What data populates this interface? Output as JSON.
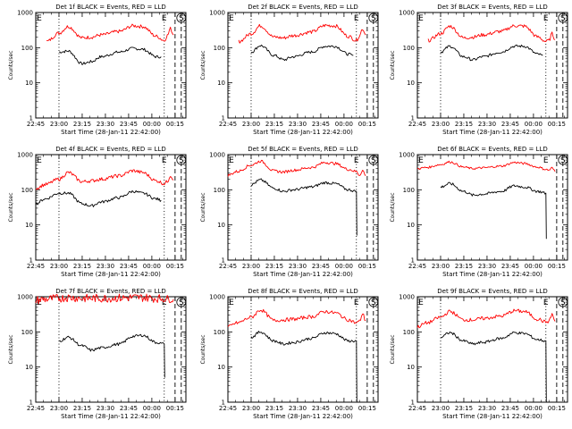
{
  "figure": {
    "panel_count": 9,
    "y_scale": "log",
    "colors": {
      "events": "#000000",
      "lld": "#ff0000",
      "axis": "#000000",
      "background": "#ffffff"
    }
  },
  "chart_data": [
    {
      "type": "line",
      "detector": "1f",
      "title": "Det 1f BLACK = Events, RED = LLD",
      "xlabel": "Start Time (28-Jan-11 22:42:00)",
      "ylabel": "Counts/sec",
      "xticks": [
        "22:45",
        "23:00",
        "23:15",
        "23:30",
        "23:45",
        "00:00",
        "00:15"
      ],
      "xlim_min": [
        3,
        100
      ],
      "ylim": [
        1,
        1000
      ],
      "ytick_labels": [
        "1",
        "10",
        "100",
        "1000"
      ],
      "marker_lines": {
        "dotted_min": [
          18,
          86
        ],
        "dashed_min": [
          93,
          97
        ]
      },
      "markers": [
        {
          "label": "E",
          "min": 3
        },
        {
          "label": "E",
          "min": 86
        },
        {
          "label": "S",
          "min": 97
        }
      ],
      "series": [
        {
          "name": "Events",
          "color": "#000000",
          "x": [
            18,
            24,
            33,
            39,
            45,
            57,
            66,
            72,
            81,
            84
          ],
          "y": [
            75,
            80,
            35,
            40,
            55,
            75,
            95,
            90,
            55,
            55
          ],
          "end_drop": null
        },
        {
          "name": "LLD",
          "color": "#ff0000",
          "x": [
            10,
            18,
            24,
            33,
            39,
            45,
            57,
            66,
            72,
            81,
            86,
            88,
            90,
            92
          ],
          "y": [
            150,
            260,
            400,
            190,
            200,
            230,
            290,
            420,
            400,
            210,
            160,
            220,
            350,
            230
          ],
          "noise": 0.05,
          "end_drop": null
        }
      ]
    },
    {
      "type": "line",
      "detector": "2f",
      "title": "Det 2f BLACK = Events, RED = LLD",
      "xlabel": "Start Time (28-Jan-11 22:42:00)",
      "ylabel": "Counts/sec",
      "xticks": [
        "22:45",
        "23:00",
        "23:15",
        "23:30",
        "23:45",
        "00:00",
        "00:15"
      ],
      "xlim_min": [
        3,
        100
      ],
      "ylim": [
        1,
        1000
      ],
      "ytick_labels": [
        "1",
        "10",
        "100",
        "1000"
      ],
      "marker_lines": {
        "dotted_min": [
          18,
          86
        ],
        "dashed_min": [
          93,
          97
        ]
      },
      "markers": [
        {
          "label": "E",
          "min": 3
        },
        {
          "label": "E",
          "min": 86
        },
        {
          "label": "S",
          "min": 97
        }
      ],
      "series": [
        {
          "name": "Events",
          "color": "#000000",
          "x": [
            18,
            24,
            33,
            39,
            45,
            57,
            66,
            72,
            81,
            84
          ],
          "y": [
            75,
            115,
            60,
            45,
            55,
            75,
            110,
            110,
            65,
            60
          ],
          "end_drop": null
        },
        {
          "name": "LLD",
          "color": "#ff0000",
          "x": [
            10,
            18,
            24,
            33,
            39,
            45,
            57,
            66,
            72,
            81,
            86,
            88,
            90,
            92
          ],
          "y": [
            150,
            250,
            420,
            200,
            190,
            220,
            280,
            430,
            420,
            210,
            160,
            220,
            350,
            230
          ],
          "noise": 0.05,
          "end_drop": null
        }
      ]
    },
    {
      "type": "line",
      "detector": "3f",
      "title": "Det 3f BLACK = Events, RED = LLD",
      "xlabel": "Start Time (28-Jan-11 22:42:00)",
      "ylabel": "Counts/sec",
      "xticks": [
        "22:45",
        "23:00",
        "23:15",
        "23:30",
        "23:45",
        "00:00",
        "00:15"
      ],
      "xlim_min": [
        3,
        100
      ],
      "ylim": [
        1,
        1000
      ],
      "ytick_labels": [
        "1",
        "10",
        "100",
        "1000"
      ],
      "marker_lines": {
        "dotted_min": [
          18,
          86
        ],
        "dashed_min": [
          93,
          97
        ]
      },
      "markers": [
        {
          "label": "E",
          "min": 3
        },
        {
          "label": "E",
          "min": 86
        },
        {
          "label": "S",
          "min": 97
        }
      ],
      "series": [
        {
          "name": "Events",
          "color": "#000000",
          "x": [
            18,
            24,
            33,
            39,
            45,
            57,
            66,
            72,
            81,
            84
          ],
          "y": [
            75,
            110,
            55,
            45,
            55,
            75,
            110,
            110,
            65,
            60
          ],
          "end_drop": null
        },
        {
          "name": "LLD",
          "color": "#ff0000",
          "x": [
            10,
            18,
            24,
            33,
            39,
            45,
            57,
            66,
            72,
            81,
            86,
            88,
            90,
            92
          ],
          "y": [
            160,
            250,
            410,
            190,
            200,
            230,
            290,
            420,
            410,
            200,
            150,
            160,
            250,
            170
          ],
          "noise": 0.05,
          "end_drop": null
        }
      ]
    },
    {
      "type": "line",
      "detector": "4f",
      "title": "Det 4f BLACK = Events, RED = LLD",
      "xlabel": "Start Time (28-Jan-11 22:42:00)",
      "ylabel": "Counts/sec",
      "xticks": [
        "22:45",
        "23:00",
        "23:15",
        "23:30",
        "23:45",
        "00:00",
        "00:15"
      ],
      "xlim_min": [
        3,
        100
      ],
      "ylim": [
        1,
        1000
      ],
      "ytick_labels": [
        "1",
        "10",
        "100",
        "1000"
      ],
      "marker_lines": {
        "dotted_min": [
          18,
          86
        ],
        "dashed_min": [
          93,
          97
        ]
      },
      "markers": [
        {
          "label": "E",
          "min": 3
        },
        {
          "label": "E",
          "min": 86
        },
        {
          "label": "S",
          "min": 97
        }
      ],
      "series": [
        {
          "name": "Events",
          "color": "#000000",
          "x": [
            3,
            9,
            18,
            24,
            33,
            39,
            45,
            57,
            66,
            72,
            81,
            84
          ],
          "y": [
            40,
            55,
            80,
            80,
            40,
            35,
            45,
            60,
            90,
            80,
            55,
            50
          ],
          "end_drop": null
        },
        {
          "name": "LLD",
          "color": "#ff0000",
          "x": [
            3,
            9,
            18,
            24,
            33,
            39,
            45,
            57,
            66,
            72,
            81,
            86,
            88,
            90,
            92
          ],
          "y": [
            110,
            140,
            200,
            310,
            170,
            180,
            200,
            250,
            350,
            310,
            180,
            150,
            170,
            260,
            190
          ],
          "noise": 0.05,
          "end_drop": null
        }
      ]
    },
    {
      "type": "line",
      "detector": "5f",
      "title": "Det 5f BLACK = Events, RED = LLD",
      "xlabel": "Start Time (28-Jan-11 22:42:00)",
      "ylabel": "Counts/sec",
      "xticks": [
        "22:45",
        "23:00",
        "23:15",
        "23:30",
        "23:45",
        "00:00",
        "00:15"
      ],
      "xlim_min": [
        3,
        100
      ],
      "ylim": [
        1,
        1000
      ],
      "ytick_labels": [
        "1",
        "10",
        "100",
        "1000"
      ],
      "marker_lines": {
        "dotted_min": [
          18,
          86
        ],
        "dashed_min": [
          93,
          97
        ]
      },
      "markers": [
        {
          "label": "E",
          "min": 3
        },
        {
          "label": "E",
          "min": 86
        },
        {
          "label": "S",
          "min": 97
        }
      ],
      "series": [
        {
          "name": "Events",
          "color": "#000000",
          "x": [
            18,
            24,
            33,
            39,
            45,
            57,
            66,
            72,
            81,
            86
          ],
          "y": [
            140,
            190,
            110,
            90,
            100,
            120,
            160,
            150,
            100,
            90
          ],
          "end_drop": 5
        },
        {
          "name": "LLD",
          "color": "#ff0000",
          "x": [
            3,
            9,
            18,
            24,
            33,
            39,
            45,
            57,
            66,
            72,
            81,
            86,
            88,
            90,
            92
          ],
          "y": [
            260,
            330,
            500,
            650,
            340,
            320,
            360,
            430,
            600,
            560,
            380,
            330,
            260,
            360,
            250
          ],
          "noise": 0.04,
          "end_drop": null
        }
      ]
    },
    {
      "type": "line",
      "detector": "6f",
      "title": "Det 6f BLACK = Events, RED = LLD",
      "xlabel": "Start Time (28-Jan-11 22:42:00)",
      "ylabel": "Counts/sec",
      "xticks": [
        "22:45",
        "23:00",
        "23:15",
        "23:30",
        "23:45",
        "00:00",
        "00:15"
      ],
      "xlim_min": [
        3,
        100
      ],
      "ylim": [
        1,
        1000
      ],
      "ytick_labels": [
        "1",
        "10",
        "100",
        "1000"
      ],
      "marker_lines": {
        "dotted_min": [],
        "dashed_min": [
          93,
          97
        ]
      },
      "markers": [
        {
          "label": "E",
          "min": 3
        },
        {
          "label": "E",
          "min": 86
        },
        {
          "label": "S",
          "min": 97
        }
      ],
      "series": [
        {
          "name": "Events",
          "color": "#000000",
          "x": [
            18,
            24,
            33,
            39,
            45,
            57,
            66,
            72,
            81,
            86
          ],
          "y": [
            120,
            150,
            90,
            70,
            75,
            90,
            130,
            120,
            90,
            80
          ],
          "end_drop": 4
        },
        {
          "name": "LLD",
          "color": "#ff0000",
          "x": [
            3,
            9,
            18,
            24,
            33,
            39,
            45,
            57,
            66,
            72,
            81,
            86,
            88,
            90,
            92
          ],
          "y": [
            400,
            430,
            520,
            620,
            440,
            400,
            420,
            470,
            600,
            560,
            440,
            380,
            360,
            420,
            330
          ],
          "noise": 0.03,
          "end_drop": null
        }
      ]
    },
    {
      "type": "line",
      "detector": "7f",
      "title": "Det 7f BLACK = Events, RED = LLD",
      "xlabel": "Start Time (28-Jan-11 22:42:00)",
      "ylabel": "Counts/sec",
      "xticks": [
        "22:45",
        "23:00",
        "23:15",
        "23:30",
        "23:45",
        "00:00",
        "00:15"
      ],
      "xlim_min": [
        3,
        100
      ],
      "ylim": [
        1,
        1000
      ],
      "ytick_labels": [
        "1",
        "10",
        "100",
        "1000"
      ],
      "marker_lines": {
        "dotted_min": [
          18,
          86
        ],
        "dashed_min": [
          93,
          97
        ]
      },
      "markers": [
        {
          "label": "E",
          "min": 3
        },
        {
          "label": "E",
          "min": 86
        },
        {
          "label": "S",
          "min": 97
        }
      ],
      "series": [
        {
          "name": "Events",
          "color": "#000000",
          "x": [
            18,
            24,
            33,
            39,
            45,
            57,
            66,
            72,
            81,
            86
          ],
          "y": [
            55,
            70,
            40,
            30,
            35,
            45,
            75,
            80,
            50,
            45
          ],
          "end_drop": 5
        },
        {
          "name": "LLD",
          "color": "#ff0000",
          "x": [
            3,
            9,
            18,
            24,
            33,
            39,
            45,
            57,
            66,
            72,
            81,
            86,
            88,
            90,
            92
          ],
          "y": [
            800,
            850,
            900,
            950,
            900,
            900,
            900,
            920,
            950,
            950,
            900,
            900,
            850,
            900,
            850
          ],
          "noise": 0.12,
          "end_drop": null
        }
      ]
    },
    {
      "type": "line",
      "detector": "8f",
      "title": "Det 8f BLACK = Events, RED = LLD",
      "xlabel": "Start Time (28-Jan-11 22:42:00)",
      "ylabel": "Counts/sec",
      "xticks": [
        "22:45",
        "23:00",
        "23:15",
        "23:30",
        "23:45",
        "00:00",
        "00:15"
      ],
      "xlim_min": [
        3,
        100
      ],
      "ylim": [
        1,
        1000
      ],
      "ytick_labels": [
        "1",
        "10",
        "100",
        "1000"
      ],
      "marker_lines": {
        "dotted_min": [
          18,
          86
        ],
        "dashed_min": [
          93,
          97
        ]
      },
      "markers": [
        {
          "label": "E",
          "min": 3
        },
        {
          "label": "E",
          "min": 86
        },
        {
          "label": "S",
          "min": 97
        }
      ],
      "series": [
        {
          "name": "Events",
          "color": "#000000",
          "x": [
            18,
            24,
            33,
            39,
            45,
            57,
            66,
            72,
            81,
            86
          ],
          "y": [
            70,
            100,
            55,
            45,
            50,
            65,
            95,
            90,
            55,
            55
          ],
          "end_drop": 1
        },
        {
          "name": "LLD",
          "color": "#ff0000",
          "x": [
            3,
            9,
            18,
            24,
            33,
            39,
            45,
            57,
            66,
            72,
            81,
            86,
            88,
            90,
            92
          ],
          "y": [
            140,
            180,
            260,
            420,
            210,
            220,
            230,
            270,
            380,
            350,
            220,
            180,
            200,
            330,
            210
          ],
          "noise": 0.05,
          "end_drop": null
        }
      ]
    },
    {
      "type": "line",
      "detector": "9f",
      "title": "Det 9f BLACK = Events, RED = LLD",
      "xlabel": "Start Time (28-Jan-11 22:42:00)",
      "ylabel": "Counts/sec",
      "xticks": [
        "22:45",
        "23:00",
        "23:15",
        "23:30",
        "23:45",
        "00:00",
        "00:15"
      ],
      "xlim_min": [
        3,
        100
      ],
      "ylim": [
        1,
        1000
      ],
      "ytick_labels": [
        "1",
        "10",
        "100",
        "1000"
      ],
      "marker_lines": {
        "dotted_min": [
          18,
          86
        ],
        "dashed_min": [
          93,
          97
        ]
      },
      "markers": [
        {
          "label": "E",
          "min": 3
        },
        {
          "label": "E",
          "min": 86
        },
        {
          "label": "S",
          "min": 97
        }
      ],
      "series": [
        {
          "name": "Events",
          "color": "#000000",
          "x": [
            18,
            24,
            33,
            39,
            45,
            57,
            66,
            72,
            81,
            86
          ],
          "y": [
            70,
            95,
            55,
            45,
            50,
            65,
            95,
            90,
            60,
            55
          ],
          "end_drop": 1
        },
        {
          "name": "LLD",
          "color": "#ff0000",
          "x": [
            3,
            9,
            18,
            24,
            33,
            39,
            45,
            57,
            66,
            72,
            81,
            86,
            88,
            90,
            92
          ],
          "y": [
            140,
            180,
            260,
            380,
            220,
            220,
            240,
            280,
            400,
            380,
            230,
            190,
            200,
            320,
            200
          ],
          "noise": 0.05,
          "end_drop": null
        }
      ]
    }
  ]
}
